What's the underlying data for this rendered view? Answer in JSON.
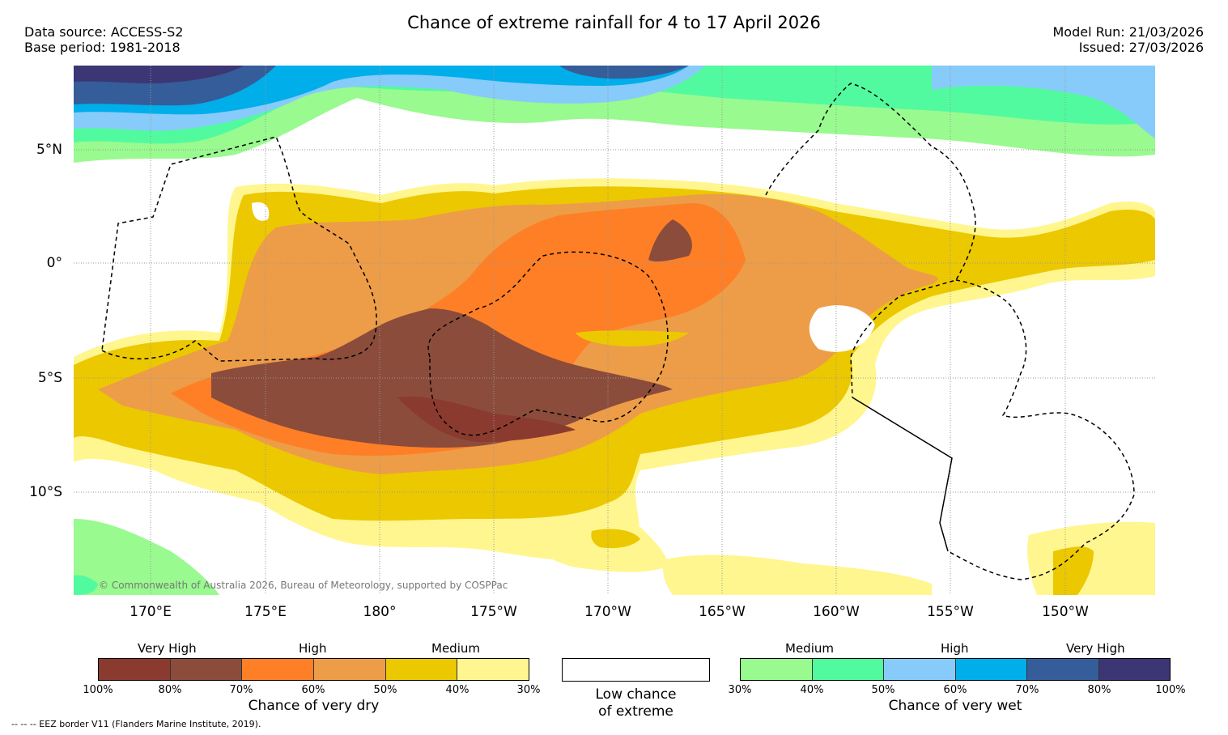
{
  "title": "Chance of extreme rainfall for 4 to 17 April 2026",
  "meta": {
    "data_source": "Data source: ACCESS-S2",
    "base_period": "Base period: 1981-2018",
    "model_run": "Model Run: 21/03/2026",
    "issued": "Issued: 27/03/2026"
  },
  "axes": {
    "lat": [
      "5°N",
      "0°",
      "5°S",
      "10°S"
    ],
    "lon": [
      "170°E",
      "175°E",
      "180°",
      "175°W",
      "170°W",
      "165°W",
      "160°W",
      "155°W",
      "150°W"
    ]
  },
  "copyright": "© Commonwealth of Australia 2026, Bureau of Meteorology, supported by COSPPac",
  "legend": {
    "dry": {
      "headers": [
        "Very High",
        "High",
        "Medium"
      ],
      "ticks": [
        "100%",
        "80%",
        "70%",
        "60%",
        "50%",
        "40%",
        "30%"
      ],
      "colors": [
        "#8b3a2f",
        "#8b4c3b",
        "#ff7f27",
        "#ed9d48",
        "#ecc800",
        "#fff68f"
      ],
      "title": "Chance of very dry"
    },
    "low": {
      "title_line1": "Low chance",
      "title_line2": "of extreme"
    },
    "wet": {
      "headers": [
        "Medium",
        "High",
        "Very High"
      ],
      "ticks": [
        "30%",
        "40%",
        "50%",
        "60%",
        "70%",
        "80%",
        "100%"
      ],
      "colors": [
        "#99fa8f",
        "#52fa9f",
        "#87cbfa",
        "#00aeea",
        "#345d9a",
        "#3c3675"
      ],
      "title": "Chance of very wet"
    }
  },
  "footnote": "--  --  -- EEZ border V11 (Flanders Marine Institute, 2019)."
}
